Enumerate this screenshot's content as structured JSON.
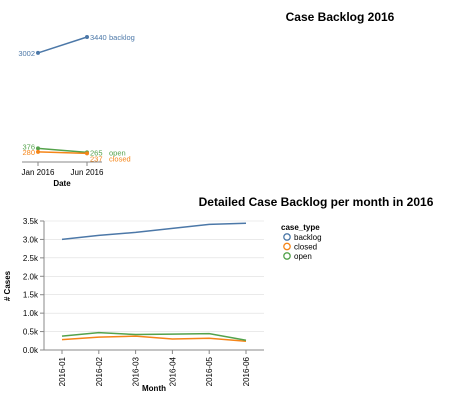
{
  "colors": {
    "backlog": "#4c78a8",
    "closed": "#f58518",
    "open": "#54a24b",
    "axis": "#888888",
    "grid": "#dddddd"
  },
  "chart_data": [
    {
      "type": "line",
      "title": "Case Backlog 2016",
      "xlabel": "Date",
      "ylabel": "",
      "x": [
        "2016-01",
        "2016-06"
      ],
      "x_tick_labels": [
        "Jan 2016",
        "Jun 2016"
      ],
      "series": [
        {
          "name": "backlog",
          "values": [
            3002,
            3440
          ]
        },
        {
          "name": "open",
          "values": [
            376,
            265
          ]
        },
        {
          "name": "closed",
          "values": [
            280,
            237
          ]
        }
      ],
      "data_labels": true,
      "grid": false,
      "legend": "inline end labels"
    },
    {
      "type": "line",
      "title": "Detailed Case Backlog per month in 2016",
      "xlabel": "Month",
      "ylabel": "# Cases",
      "x": [
        "2016-01",
        "2016-02",
        "2016-03",
        "2016-04",
        "2016-05",
        "2016-06"
      ],
      "ylim": [
        0,
        3500
      ],
      "y_ticks": [
        "0.0k",
        "0.5k",
        "1.0k",
        "1.5k",
        "2.0k",
        "2.5k",
        "3.0k",
        "3.5k"
      ],
      "legend_title": "case_type",
      "legend_position": "right",
      "grid": true,
      "series": [
        {
          "name": "backlog",
          "values": [
            3002,
            3110,
            3190,
            3300,
            3410,
            3440
          ]
        },
        {
          "name": "closed",
          "values": [
            280,
            350,
            375,
            300,
            320,
            237
          ]
        },
        {
          "name": "open",
          "values": [
            376,
            470,
            420,
            430,
            445,
            265
          ]
        }
      ]
    }
  ]
}
